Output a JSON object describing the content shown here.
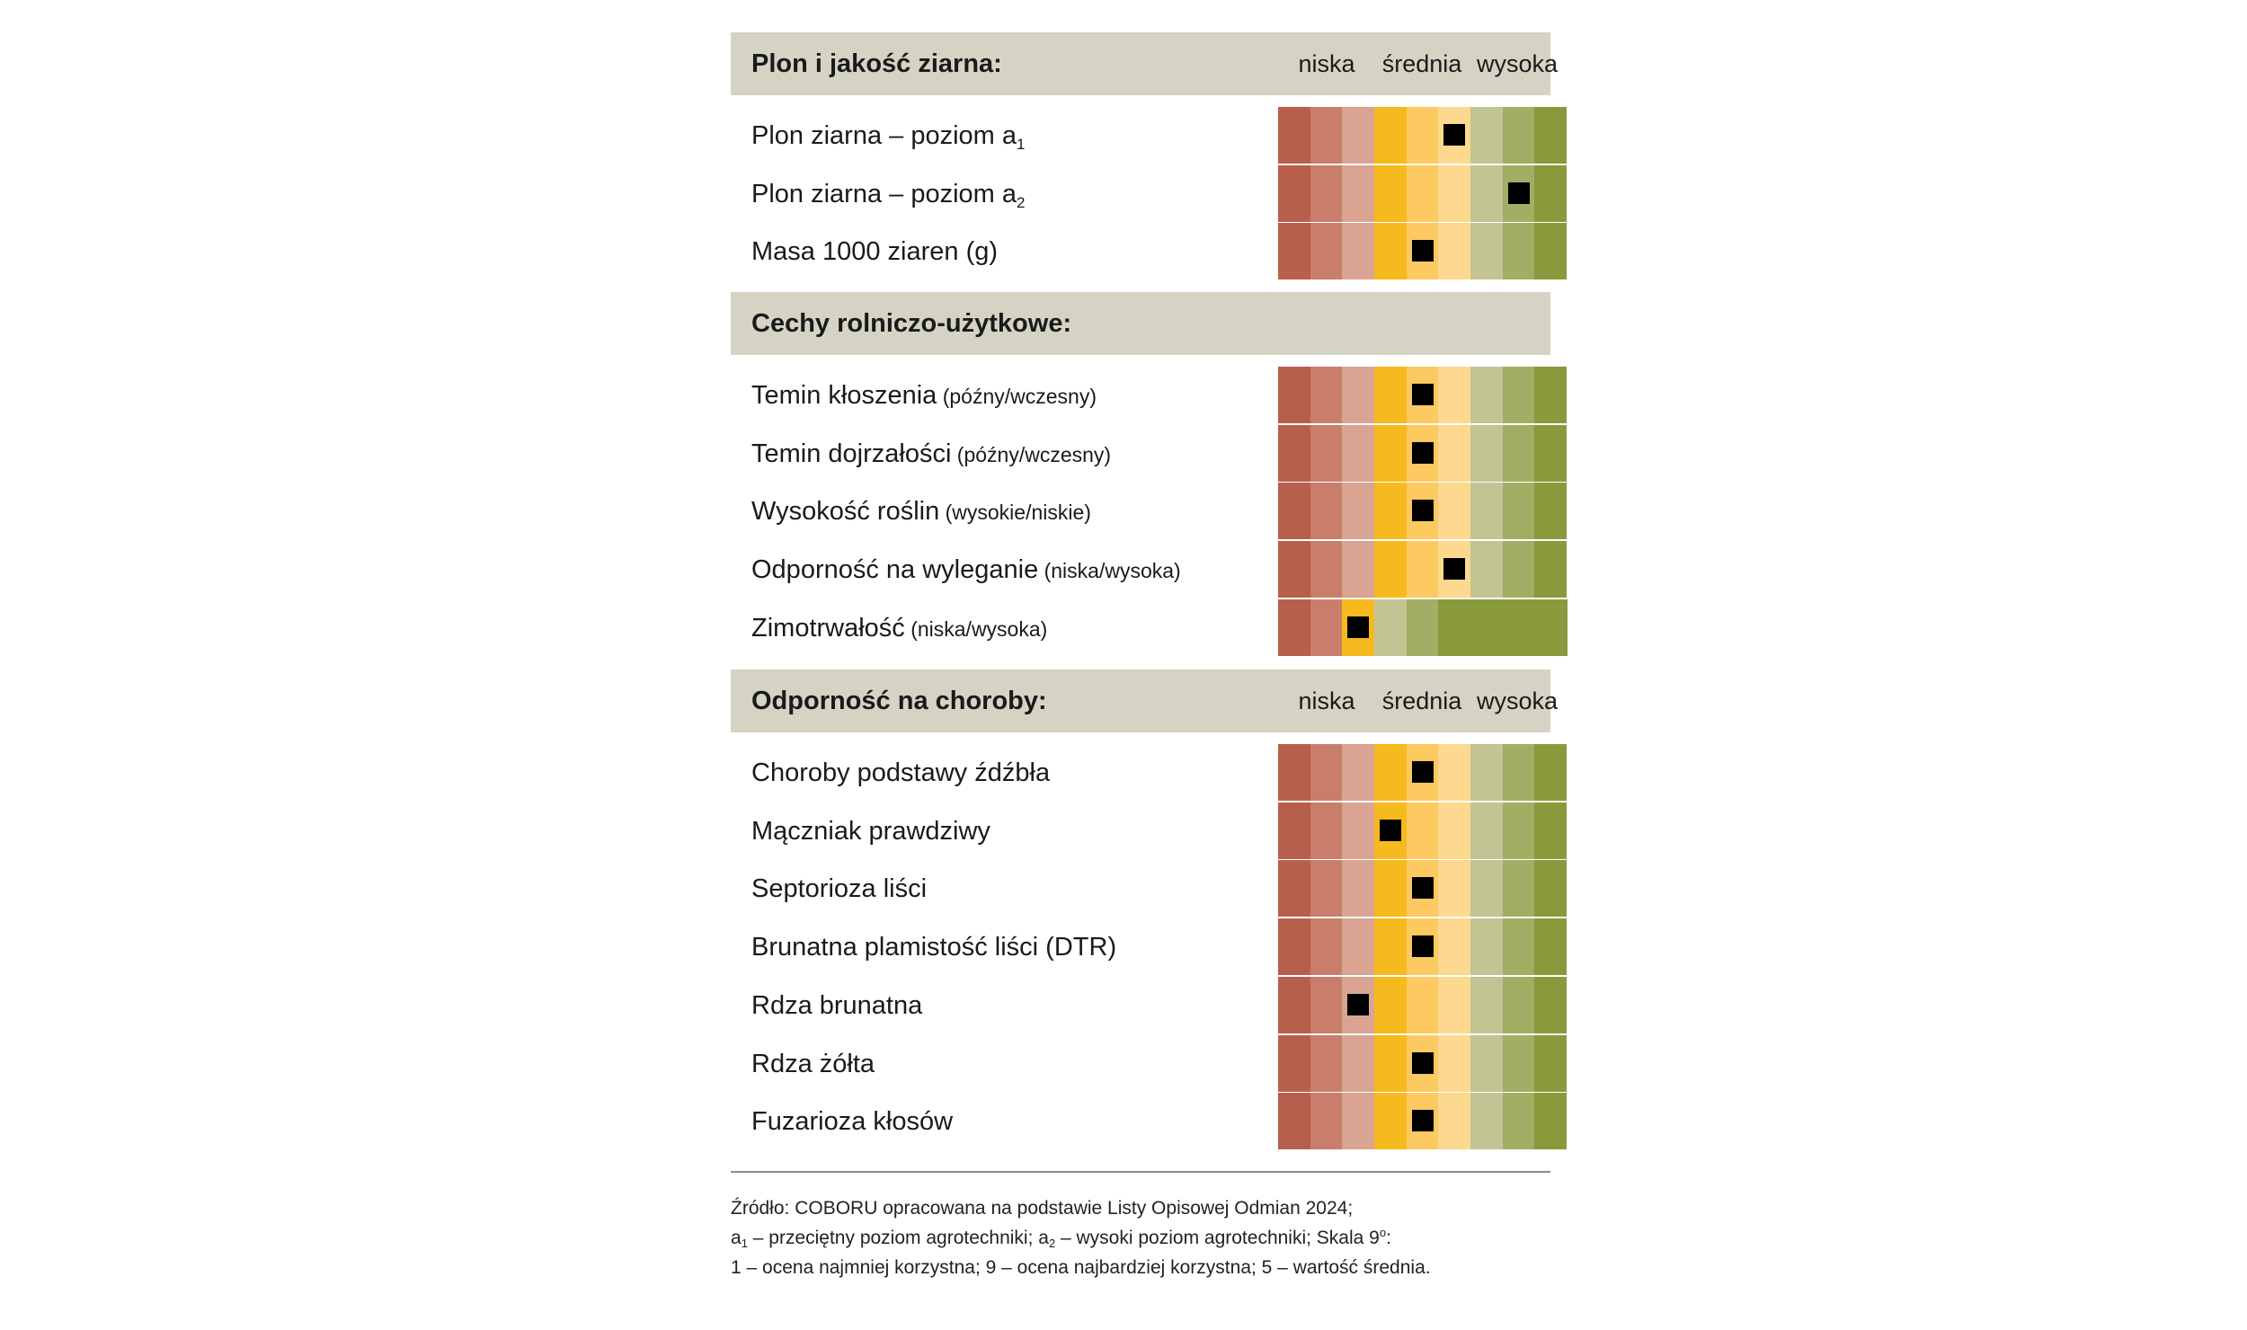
{
  "scale_labels": {
    "low": "niska",
    "mid": "średnia",
    "high": "wysoka"
  },
  "palette": [
    "#b85f4c",
    "#c97e6b",
    "#d9a492",
    "#f6b91e",
    "#fdc961",
    "#fdd98f",
    "#c2c494",
    "#a3ad63",
    "#889a3b"
  ],
  "sections": [
    {
      "title": "Plon i jakość ziarna:",
      "show_scale": true
    },
    {
      "title": "Cechy rolniczo-użytkowe:",
      "show_scale": false
    },
    {
      "title": "Odporność na choroby:",
      "show_scale": true
    }
  ],
  "chart_data": {
    "type": "table",
    "scale_max": 9,
    "sections": [
      {
        "title": "Plon i jakość ziarna:",
        "rows": [
          {
            "label": "Plon ziarna – poziom a",
            "subscript": "1",
            "note": "",
            "value": 6
          },
          {
            "label": "Plon ziarna – poziom a",
            "subscript": "2",
            "note": "",
            "value": 8
          },
          {
            "label": "Masa 1000 ziaren (g)",
            "subscript": "",
            "note": "",
            "value": 5
          }
        ]
      },
      {
        "title": "Cechy rolniczo-użytkowe:",
        "rows": [
          {
            "label": "Temin kłoszenia",
            "subscript": "",
            "note": "(późny/wczesny)",
            "value": 5
          },
          {
            "label": "Temin dojrzałości",
            "subscript": "",
            "note": "(późny/wczesny)",
            "value": 5
          },
          {
            "label": "Wysokość roślin",
            "subscript": "",
            "note": "(wysokie/niskie)",
            "value": 5
          },
          {
            "label": "Odporność na wyleganie",
            "subscript": "",
            "note": "(niska/wysoka)",
            "value": 6
          },
          {
            "label": "Zimotrwałość",
            "subscript": "",
            "note": "(niska/wysoka)",
            "value": 3,
            "scale_max": 5
          }
        ]
      },
      {
        "title": "Odporność na choroby:",
        "rows": [
          {
            "label": "Choroby podstawy źdźbła",
            "subscript": "",
            "note": "",
            "value": 5
          },
          {
            "label": "Mączniak prawdziwy",
            "subscript": "",
            "note": "",
            "value": 4
          },
          {
            "label": "Septorioza liści",
            "subscript": "",
            "note": "",
            "value": 5
          },
          {
            "label": "Brunatna plamistość liści (DTR)",
            "subscript": "",
            "note": "",
            "value": 5
          },
          {
            "label": "Rdza brunatna",
            "subscript": "",
            "note": "",
            "value": 3
          },
          {
            "label": "Rdza żółta",
            "subscript": "",
            "note": "",
            "value": 5
          },
          {
            "label": "Fuzarioza kłosów",
            "subscript": "",
            "note": "",
            "value": 5
          }
        ]
      }
    ]
  },
  "footer": {
    "line1": "Źródło: COBORU opracowana na podstawie Listy Opisowej Odmian 2024;",
    "line2_a": "a",
    "line2_sub1": "1",
    "line2_b": " – przeciętny poziom agrotechniki; a",
    "line2_sub2": "2",
    "line2_c": " – wysoki poziom agrotechniki; Skala 9",
    "line2_sup": "o",
    "line2_d": ":",
    "line3": "1 – ocena najmniej korzystna; 9 – ocena najbardziej korzystna; 5 – wartość średnia."
  }
}
